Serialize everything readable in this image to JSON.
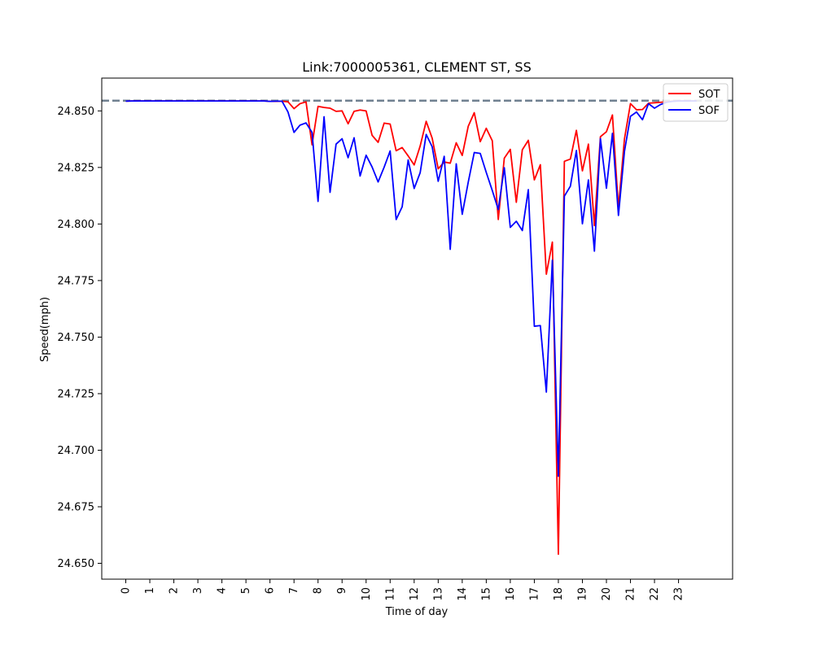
{
  "chart_data": {
    "type": "line",
    "title": "Link:7000005361, CLEMENT ST, SS",
    "xlabel": "Time of day",
    "ylabel": "Speed(mph)",
    "xlim": [
      -1,
      25.25
    ],
    "ylim": [
      24.643,
      24.8645
    ],
    "x_ticks": [
      0,
      1,
      2,
      3,
      4,
      5,
      6,
      7,
      8,
      9,
      10,
      11,
      12,
      13,
      14,
      15,
      16,
      17,
      18,
      19,
      20,
      21,
      22,
      23
    ],
    "x_tick_labels": [
      "0",
      "1",
      "2",
      "3",
      "4",
      "5",
      "6",
      "7",
      "8",
      "9",
      "10",
      "11",
      "12",
      "13",
      "14",
      "15",
      "16",
      "17",
      "18",
      "19",
      "20",
      "21",
      "22",
      "23"
    ],
    "y_ticks": [
      24.65,
      24.675,
      24.7,
      24.725,
      24.75,
      24.775,
      24.8,
      24.825,
      24.85
    ],
    "y_tick_labels": [
      "24.650",
      "24.675",
      "24.700",
      "24.725",
      "24.750",
      "24.775",
      "24.800",
      "24.825",
      "24.850"
    ],
    "grid": false,
    "legend": {
      "position": "top-right"
    },
    "reference_line": {
      "y": 24.8545,
      "style": "dashed",
      "color": "#708090"
    },
    "series": [
      {
        "name": "SOT",
        "color": "#ff0000",
        "points": [
          [
            0,
            24.8543
          ],
          [
            0.25,
            24.8544
          ],
          [
            0.5,
            24.8544
          ],
          [
            0.75,
            24.8544
          ],
          [
            1,
            24.8544
          ],
          [
            1.25,
            24.8544
          ],
          [
            1.5,
            24.8544
          ],
          [
            1.75,
            24.8544
          ],
          [
            2,
            24.8544
          ],
          [
            2.25,
            24.8544
          ],
          [
            2.5,
            24.8544
          ],
          [
            2.75,
            24.8544
          ],
          [
            3,
            24.8544
          ],
          [
            3.25,
            24.8544
          ],
          [
            3.5,
            24.8544
          ],
          [
            3.75,
            24.8544
          ],
          [
            4,
            24.8544
          ],
          [
            4.25,
            24.8544
          ],
          [
            4.5,
            24.8544
          ],
          [
            4.75,
            24.8544
          ],
          [
            5,
            24.8544
          ],
          [
            5.25,
            24.8544
          ],
          [
            5.5,
            24.8544
          ],
          [
            5.75,
            24.8544
          ],
          [
            6,
            24.8542
          ],
          [
            6.25,
            24.8542
          ],
          [
            6.5,
            24.8543
          ],
          [
            6.75,
            24.854
          ],
          [
            7,
            24.851
          ],
          [
            7.25,
            24.8532
          ],
          [
            7.5,
            24.854
          ],
          [
            7.75,
            24.835
          ],
          [
            8,
            24.852
          ],
          [
            8.25,
            24.8515
          ],
          [
            8.5,
            24.8512
          ],
          [
            8.75,
            24.8498
          ],
          [
            9,
            24.85
          ],
          [
            9.25,
            24.8443
          ],
          [
            9.5,
            24.8498
          ],
          [
            9.75,
            24.8504
          ],
          [
            10,
            24.85
          ],
          [
            10.25,
            24.8392
          ],
          [
            10.5,
            24.8361
          ],
          [
            10.75,
            24.8446
          ],
          [
            11,
            24.8442
          ],
          [
            11.25,
            24.8324
          ],
          [
            11.5,
            24.8338
          ],
          [
            11.75,
            24.8301
          ],
          [
            12,
            24.8261
          ],
          [
            12.25,
            24.8345
          ],
          [
            12.5,
            24.8454
          ],
          [
            12.75,
            24.8379
          ],
          [
            13,
            24.8244
          ],
          [
            13.25,
            24.8274
          ],
          [
            13.5,
            24.8269
          ],
          [
            13.75,
            24.8359
          ],
          [
            14,
            24.8303
          ],
          [
            14.25,
            24.8432
          ],
          [
            14.5,
            24.8492
          ],
          [
            14.75,
            24.8364
          ],
          [
            15,
            24.8423
          ],
          [
            15.25,
            24.8368
          ],
          [
            15.5,
            24.802
          ],
          [
            15.75,
            24.8291
          ],
          [
            16,
            24.833
          ],
          [
            16.25,
            24.8096
          ],
          [
            16.5,
            24.8328
          ],
          [
            16.75,
            24.837
          ],
          [
            17,
            24.8195
          ],
          [
            17.25,
            24.8262
          ],
          [
            17.5,
            24.7778
          ],
          [
            17.75,
            24.792
          ],
          [
            18,
            24.654
          ],
          [
            18.25,
            24.8277
          ],
          [
            18.5,
            24.8287
          ],
          [
            18.75,
            24.8414
          ],
          [
            19,
            24.8235
          ],
          [
            19.25,
            24.8353
          ],
          [
            19.5,
            24.7993
          ],
          [
            19.75,
            24.8386
          ],
          [
            20,
            24.8408
          ],
          [
            20.25,
            24.8482
          ],
          [
            20.5,
            24.807
          ],
          [
            20.75,
            24.8376
          ],
          [
            21,
            24.8532
          ],
          [
            21.25,
            24.8505
          ],
          [
            21.5,
            24.8506
          ],
          [
            21.75,
            24.8534
          ],
          [
            22,
            24.8536
          ],
          [
            22.25,
            24.8538
          ],
          [
            22.5,
            24.854
          ],
          [
            22.75,
            24.8543
          ],
          [
            23,
            24.8544
          ],
          [
            23.25,
            24.8544
          ],
          [
            23.5,
            24.8544
          ],
          [
            23.75,
            24.8544
          ]
        ]
      },
      {
        "name": "SOF",
        "color": "#0000ff",
        "points": [
          [
            0,
            24.8543
          ],
          [
            0.25,
            24.8544
          ],
          [
            0.5,
            24.8544
          ],
          [
            0.75,
            24.8544
          ],
          [
            1,
            24.8544
          ],
          [
            1.25,
            24.8544
          ],
          [
            1.5,
            24.8544
          ],
          [
            1.75,
            24.8544
          ],
          [
            2,
            24.8544
          ],
          [
            2.25,
            24.8544
          ],
          [
            2.5,
            24.8544
          ],
          [
            2.75,
            24.8544
          ],
          [
            3,
            24.8544
          ],
          [
            3.25,
            24.8544
          ],
          [
            3.5,
            24.8544
          ],
          [
            3.75,
            24.8544
          ],
          [
            4,
            24.8544
          ],
          [
            4.25,
            24.8544
          ],
          [
            4.5,
            24.8544
          ],
          [
            4.75,
            24.8544
          ],
          [
            5,
            24.8544
          ],
          [
            5.25,
            24.8544
          ],
          [
            5.5,
            24.8544
          ],
          [
            5.75,
            24.8544
          ],
          [
            6,
            24.8542
          ],
          [
            6.25,
            24.8543
          ],
          [
            6.5,
            24.8543
          ],
          [
            6.75,
            24.8495
          ],
          [
            7,
            24.8405
          ],
          [
            7.25,
            24.8437
          ],
          [
            7.5,
            24.8447
          ],
          [
            7.75,
            24.8405
          ],
          [
            8,
            24.81
          ],
          [
            8.25,
            24.8474
          ],
          [
            8.5,
            24.814
          ],
          [
            8.75,
            24.8353
          ],
          [
            9,
            24.8377
          ],
          [
            9.25,
            24.8293
          ],
          [
            9.5,
            24.8381
          ],
          [
            9.75,
            24.8212
          ],
          [
            10,
            24.8304
          ],
          [
            10.25,
            24.8252
          ],
          [
            10.5,
            24.8186
          ],
          [
            10.75,
            24.8251
          ],
          [
            11,
            24.8323
          ],
          [
            11.25,
            24.802
          ],
          [
            11.5,
            24.8076
          ],
          [
            11.75,
            24.8283
          ],
          [
            12,
            24.8157
          ],
          [
            12.25,
            24.8227
          ],
          [
            12.5,
            24.8396
          ],
          [
            12.75,
            24.8341
          ],
          [
            13,
            24.8189
          ],
          [
            13.25,
            24.8299
          ],
          [
            13.5,
            24.7888
          ],
          [
            13.75,
            24.8266
          ],
          [
            14,
            24.8043
          ],
          [
            14.25,
            24.8185
          ],
          [
            14.5,
            24.8316
          ],
          [
            14.75,
            24.8312
          ],
          [
            15,
            24.8228
          ],
          [
            15.25,
            24.8148
          ],
          [
            15.5,
            24.8064
          ],
          [
            15.75,
            24.8249
          ],
          [
            16,
            24.7985
          ],
          [
            16.25,
            24.8012
          ],
          [
            16.5,
            24.7971
          ],
          [
            16.75,
            24.8152
          ],
          [
            17,
            24.7548
          ],
          [
            17.25,
            24.7551
          ],
          [
            17.5,
            24.7257
          ],
          [
            17.75,
            24.784
          ],
          [
            18,
            24.6885
          ],
          [
            18.25,
            24.8123
          ],
          [
            18.5,
            24.8167
          ],
          [
            18.75,
            24.8325
          ],
          [
            19,
            24.8001
          ],
          [
            19.25,
            24.8195
          ],
          [
            19.5,
            24.788
          ],
          [
            19.75,
            24.8377
          ],
          [
            20,
            24.8158
          ],
          [
            20.25,
            24.8401
          ],
          [
            20.5,
            24.8038
          ],
          [
            20.75,
            24.8321
          ],
          [
            21,
            24.8476
          ],
          [
            21.25,
            24.8495
          ],
          [
            21.5,
            24.8461
          ],
          [
            21.75,
            24.8532
          ],
          [
            22,
            24.8512
          ],
          [
            22.25,
            24.8528
          ],
          [
            22.5,
            24.8538
          ],
          [
            22.75,
            24.8542
          ],
          [
            23,
            24.8544
          ],
          [
            23.25,
            24.8544
          ],
          [
            23.5,
            24.8544
          ],
          [
            23.75,
            24.8544
          ]
        ]
      }
    ]
  }
}
